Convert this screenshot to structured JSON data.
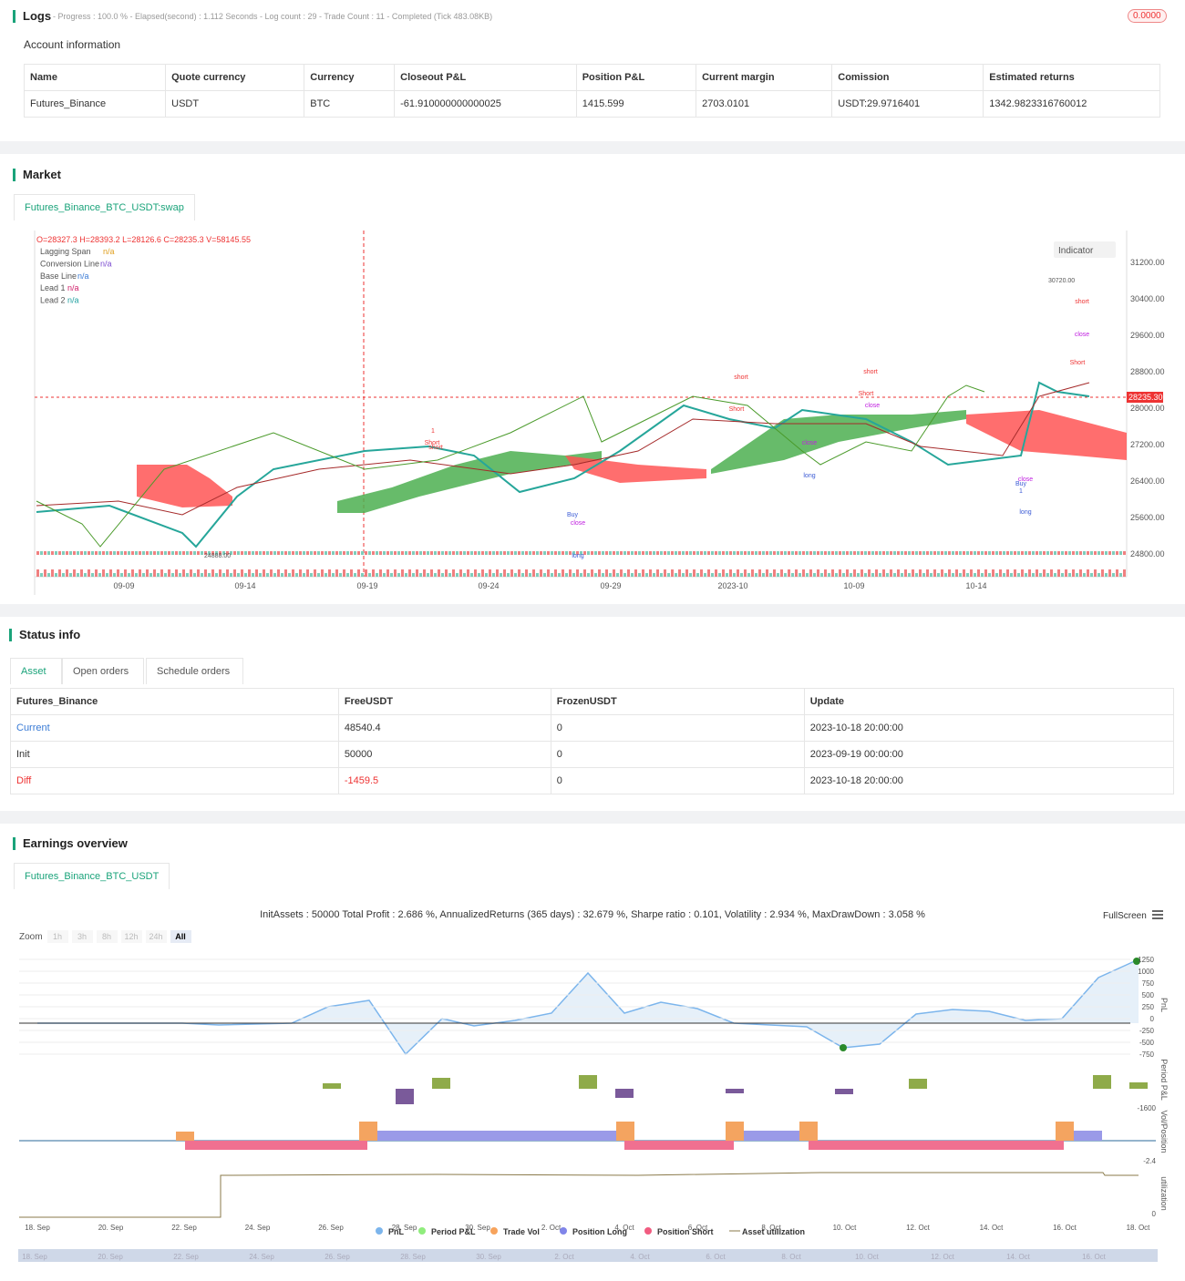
{
  "logs": {
    "title": "Logs",
    "summary": "- Progress : 100.0 % - Elapsed(second) : 1.112 Seconds - Log count : 29 - Trade Count : 11 - Completed (Tick 483.08KB)",
    "badge": "0.0000"
  },
  "account": {
    "title": "Account information",
    "columns": [
      "Name",
      "Quote currency",
      "Currency",
      "Closeout P&L",
      "Position P&L",
      "Current margin",
      "Comission",
      "Estimated returns"
    ],
    "rows": [
      [
        "Futures_Binance",
        "USDT",
        "BTC",
        "-61.910000000000025",
        "1415.599",
        "2703.0101",
        "USDT:29.9716401",
        "1342.9823316760012"
      ]
    ]
  },
  "market": {
    "title": "Market",
    "tab": "Futures_Binance_BTC_USDT:swap",
    "ohlc": "O=28327.3 H=28393.2 L=28126.6 C=28235.3 V=58145.55",
    "legend": [
      {
        "name": "Lagging Span",
        "value": "n/a"
      },
      {
        "name": "Conversion Line",
        "value": "n/a"
      },
      {
        "name": "Base Line",
        "value": "n/a"
      },
      {
        "name": "Lead 1",
        "value": "n/a"
      },
      {
        "name": "Lead 2",
        "value": "n/a"
      }
    ],
    "indicator": "Indicator",
    "yticks": [
      "31200.00",
      "30400.00",
      "29600.00",
      "28800.00",
      "28000.00",
      "27200.00",
      "26400.00",
      "25600.00",
      "24800.00"
    ],
    "xticks": [
      "09-09",
      "09-14",
      "09-19",
      "09-24",
      "09-29",
      "2023-10",
      "10-09",
      "10-14"
    ],
    "price_tag": "28235.30",
    "high_label": "30720.00",
    "low_label": "24888.00",
    "annotations": [
      "1",
      "Short",
      "short",
      "short",
      "Short",
      "short",
      "Short",
      "close",
      "short",
      "close",
      "Short",
      "Buy",
      "close",
      "long",
      "long",
      "close",
      "Buy",
      "close",
      "long",
      "1"
    ]
  },
  "status": {
    "title": "Status info",
    "tabs": [
      "Asset",
      "Open orders",
      "Schedule orders"
    ],
    "columns": [
      "Futures_Binance",
      "FreeUSDT",
      "FrozenUSDT",
      "Update"
    ],
    "rows": [
      [
        "Current",
        "48540.4",
        "0",
        "2023-10-18 20:00:00"
      ],
      [
        "Init",
        "50000",
        "0",
        "2023-09-19 00:00:00"
      ],
      [
        "Diff",
        "-1459.5",
        "0",
        "2023-10-18 20:00:00"
      ]
    ]
  },
  "earnings": {
    "title": "Earnings overview",
    "tab": "Futures_Binance_BTC_USDT",
    "stats": "InitAssets : 50000 Total Profit : 2.686 %, AnnualizedReturns (365 days) : 32.679 %, Sharpe ratio : 0.101, Volatility : 2.934 %, MaxDrawDown : 3.058 %",
    "fullscreen": "FullScreen",
    "zoom": "Zoom",
    "zoom_buttons": [
      "1h",
      "3h",
      "8h",
      "12h",
      "24h",
      "All"
    ],
    "pnl_ticks": [
      "1250",
      "1000",
      "750",
      "500",
      "250",
      "0",
      "-250",
      "-500",
      "-750"
    ],
    "axis_titles": [
      "PnL",
      "Period P&L",
      "Vol/Position",
      "utilization"
    ],
    "period_tick": "-1600",
    "vol_tick": "-2.4",
    "util_tick": "0",
    "xticks": [
      "18. Sep",
      "20. Sep",
      "22. Sep",
      "24. Sep",
      "26. Sep",
      "28. Sep",
      "30. Sep",
      "2. Oct",
      "4. Oct",
      "6. Oct",
      "8. Oct",
      "10. Oct",
      "12. Oct",
      "14. Oct",
      "16. Oct",
      "18. Oct"
    ],
    "legend": [
      "PnL",
      "Period P&L",
      "Trade Vol",
      "Position Long",
      "Position Short",
      "Asset utilization"
    ],
    "navigator": [
      "18. Sep",
      "20. Sep",
      "22. Sep",
      "24. Sep",
      "26. Sep",
      "28. Sep",
      "30. Sep",
      "2. Oct",
      "4. Oct",
      "6. Oct",
      "8. Oct",
      "10. Oct",
      "12. Oct",
      "14. Oct",
      "16. Oct"
    ]
  }
}
